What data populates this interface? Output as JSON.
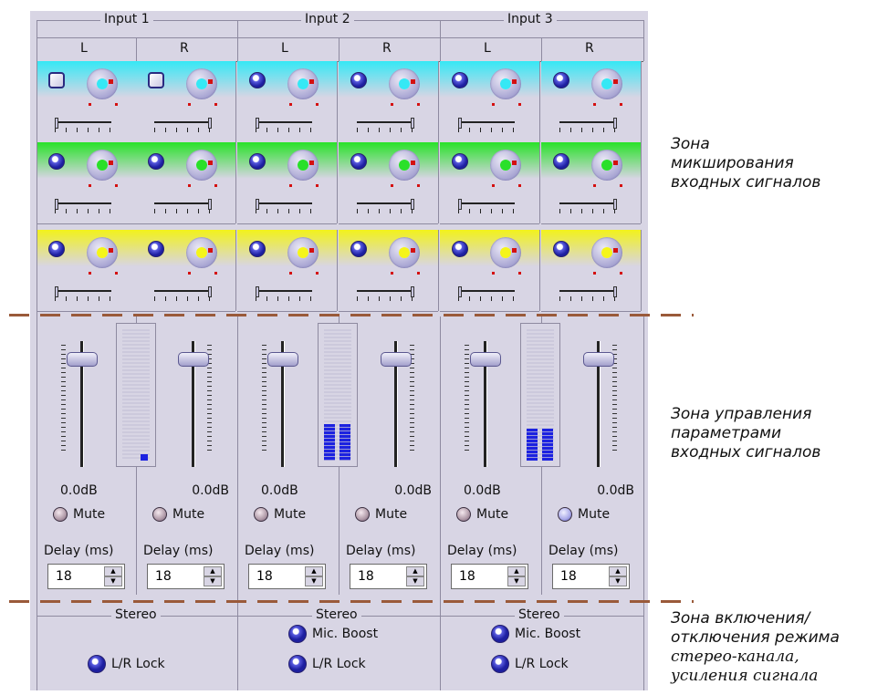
{
  "inputs": [
    {
      "label": "Input 1",
      "meter_level": 0.05
    },
    {
      "label": "Input 2",
      "meter_level": 0.28
    },
    {
      "label": "Input 3",
      "meter_level": 0.24
    }
  ],
  "channel_labels": [
    "L",
    "R",
    "L",
    "R",
    "L",
    "R"
  ],
  "gain_values": [
    "0.0dB",
    "0.0dB",
    "0.0dB",
    "0.0dB",
    "0.0dB",
    "0.0dB"
  ],
  "mute_label": "Mute",
  "delay_label": "Delay (ms)",
  "delay_values": [
    "18",
    "18",
    "18",
    "18",
    "18",
    "18"
  ],
  "stereo": {
    "title": "Stereo",
    "mic_boost_label": "Mic. Boost",
    "lr_lock_label": "L/R Lock"
  },
  "mix_bands": [
    {
      "color": "#35e8f5",
      "dot": "#35e8f5"
    },
    {
      "color": "#28e228",
      "dot": "#2ae02a"
    },
    {
      "color": "#f2f21a",
      "dot": "#f5f51a"
    }
  ],
  "zones": {
    "mix": [
      "Зона",
      "микширования",
      "входных сигналов"
    ],
    "params": [
      "Зона управления",
      "параметрами",
      "входных сигналов"
    ],
    "stereo_line1": "Зона включения/",
    "stereo_line2": "отключения режима",
    "stereo_line3": "стерео-канала,",
    "stereo_line4": "усиления сигнала"
  }
}
